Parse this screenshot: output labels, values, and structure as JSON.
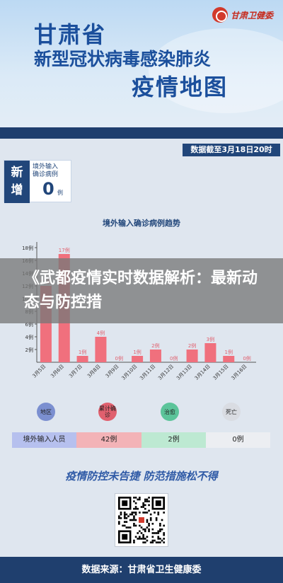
{
  "header": {
    "title_line1": "甘肃省",
    "title_line2": "新型冠状病毒感染肺炎",
    "title_line3": "疫情地图",
    "logo_text": "甘肃卫健委"
  },
  "date_note": "数据截至3月18日20时",
  "new_cases": {
    "tag_line1": "新",
    "tag_line2": "增",
    "label_line1": "境外输入",
    "label_line2": "确诊病例",
    "value": "0",
    "unit": "例"
  },
  "chart_title": "境外输入确诊病例趋势",
  "chart_data": {
    "type": "bar",
    "categories": [
      "3月5日",
      "3月6日",
      "3月7日",
      "3月8日",
      "3月9日",
      "3月10日",
      "3月11日",
      "3月12日",
      "3月13日",
      "3月14日",
      "3月15日",
      "3月16日"
    ],
    "values": [
      12,
      17,
      1,
      4,
      0,
      1,
      2,
      0,
      2,
      3,
      1,
      0
    ],
    "data_labels": [
      "12例",
      "17例",
      "1例",
      "4例",
      "0例",
      "1例",
      "2例",
      "0例",
      "2例",
      "3例",
      "1例",
      "0例"
    ],
    "y_ticks": [
      "2例",
      "4例",
      "6例",
      "8例",
      "10例",
      "12例",
      "14例",
      "16例",
      "18例"
    ],
    "ylim": [
      0,
      18
    ],
    "bar_color": "#f0707d",
    "grid": false
  },
  "overlay_headline": "《武都疫情实时数据解析：最新动态与防控措",
  "legend": [
    {
      "label": "地区",
      "color": "#7b8fd0"
    },
    {
      "label": "累计确诊",
      "color": "#e0606e"
    },
    {
      "label": "治愈",
      "color": "#5cc49a"
    },
    {
      "label": "死亡",
      "color": "#d9dce2"
    }
  ],
  "summary_row": {
    "region": "境外输入人员",
    "confirmed": "42例",
    "cured": "2例",
    "deaths": "0例",
    "colors": {
      "region": "#b6c0ee",
      "confirmed": "#f3b3b7",
      "cured": "#bde9d2",
      "deaths": "#eceef2"
    }
  },
  "slogan": "疫情防控未告捷  防范措施松不得",
  "footer": "数据来源：甘肃省卫生健康委"
}
